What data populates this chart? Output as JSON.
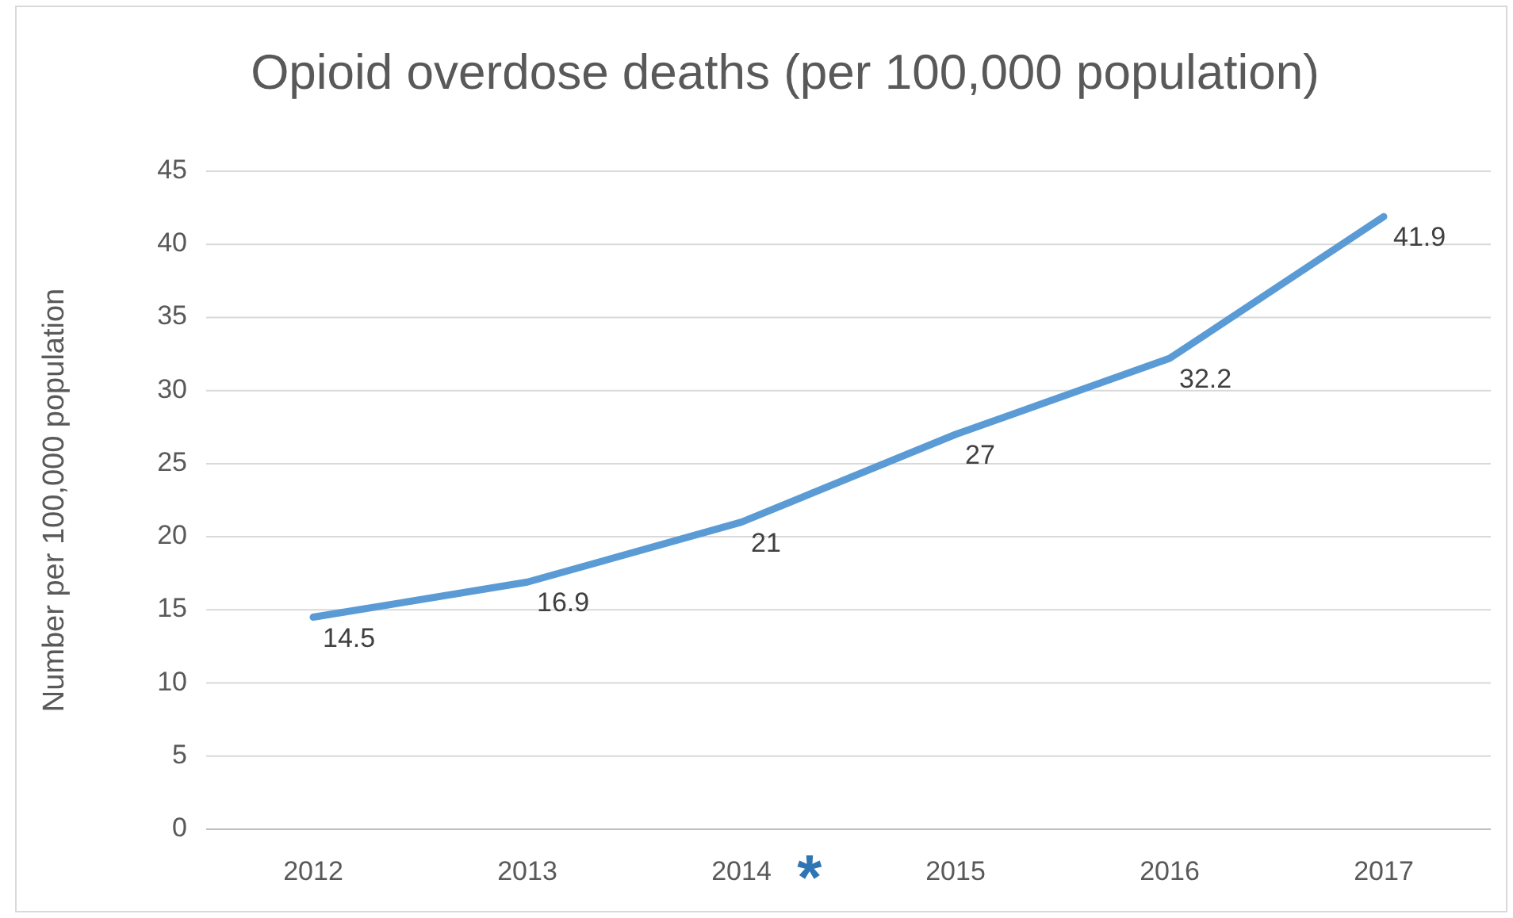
{
  "chart_data": {
    "type": "line",
    "title": "Opioid overdose deaths (per 100,000 population)",
    "ylabel": "Number per 100,000 population",
    "categories": [
      "2012",
      "2013",
      "2014",
      "2015",
      "2016",
      "2017"
    ],
    "series": [
      {
        "color": "#5b9bd5",
        "values": [
          14.5,
          16.9,
          21,
          27,
          32.2,
          41.9
        ]
      }
    ],
    "ylim": [
      0,
      45
    ],
    "yticks": [
      0,
      5,
      10,
      15,
      20,
      25,
      30,
      35,
      40,
      45
    ],
    "grid": "y",
    "data_labels": true,
    "marker": "none",
    "line_style": "solid",
    "annotations": [
      "*"
    ]
  }
}
